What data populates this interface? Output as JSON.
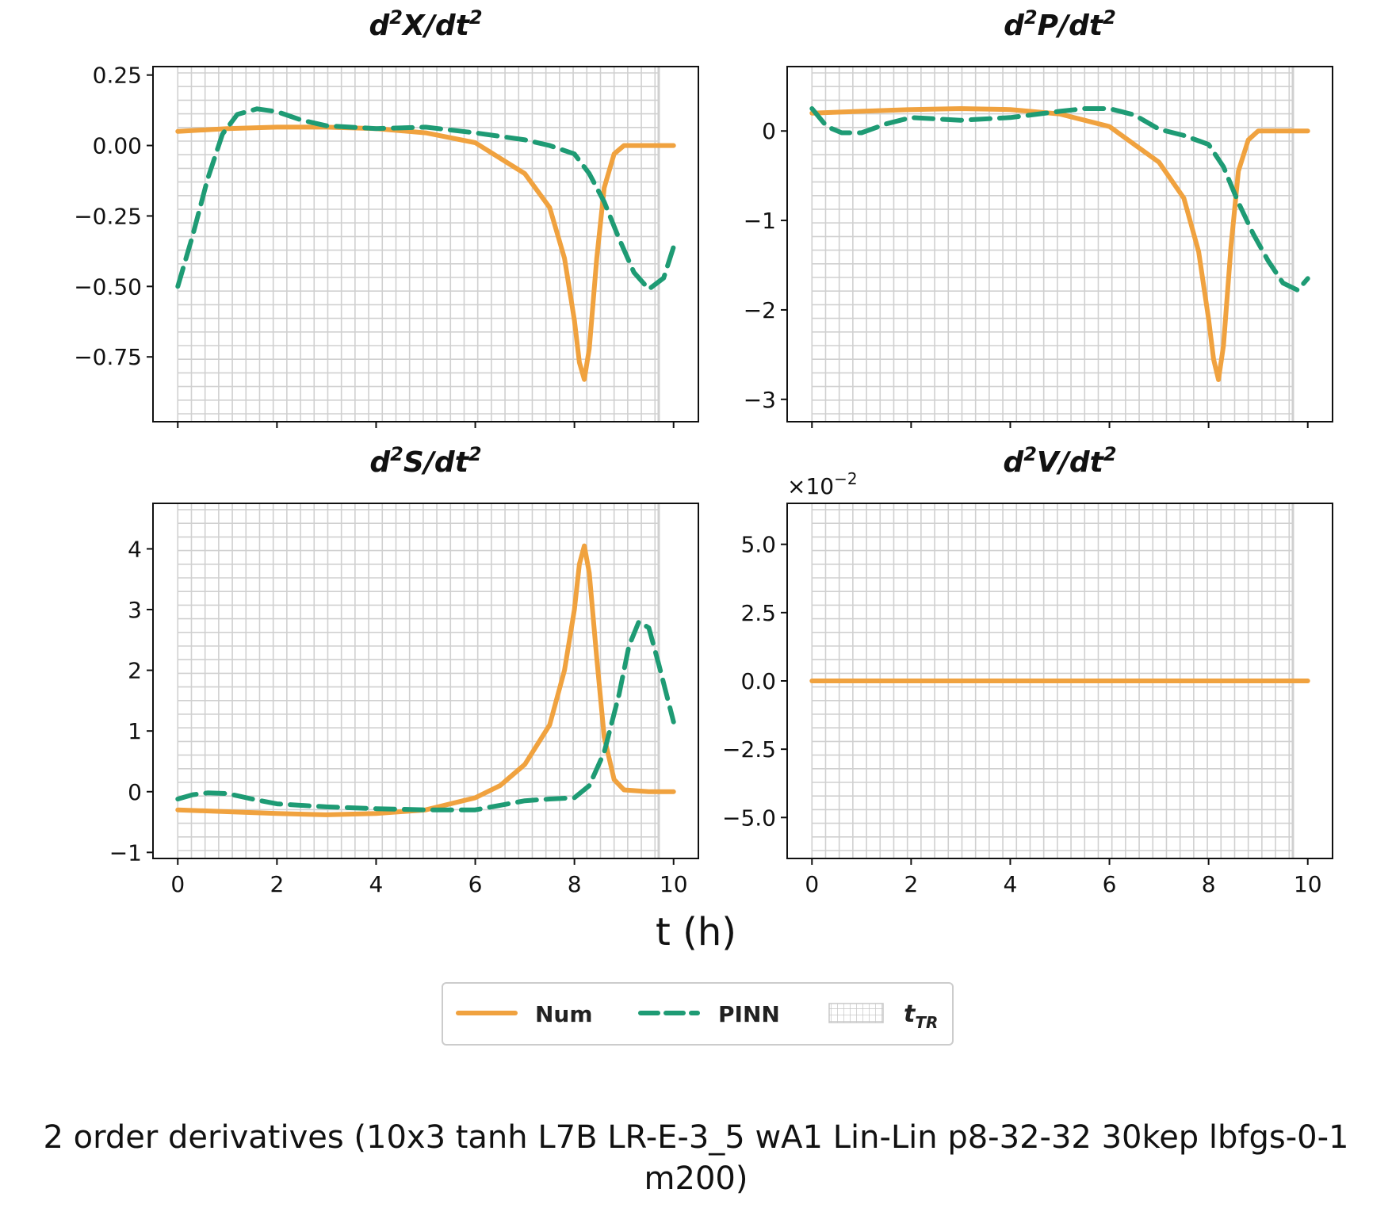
{
  "figure": {
    "xlabel": "t (h)",
    "suptitle_line1": "2 order derivatives (10x3 tanh L7B LR-E-3_5 wA1 Lin-Lin p8-32-32 30kep lbfgs-0-1",
    "suptitle_line2": "m200)"
  },
  "legend": {
    "num": "Num",
    "pinn": "PINN",
    "ttr_base": "t",
    "ttr_sub": "TR"
  },
  "colors": {
    "num": "#f0a23f",
    "pinn": "#1e9b74",
    "grid": "#d0d0d0"
  },
  "chart_data": [
    {
      "type": "line",
      "title_num": "d",
      "title_den": "dt",
      "title_var": "X",
      "title_exp": "2",
      "xlim": [
        -0.5,
        10.5
      ],
      "ylim": [
        -0.98,
        0.28
      ],
      "xticks": [
        0,
        2,
        4,
        6,
        8,
        10
      ],
      "xticklabels": [],
      "yticks": [
        0.25,
        0.0,
        -0.25,
        -0.5,
        -0.75
      ],
      "yticklabels": [
        "0.25",
        "0.00",
        "−0.25",
        "−0.50",
        "−0.75"
      ],
      "exponent_label": "",
      "grid_shaded_region": [
        0,
        9.7
      ],
      "series": [
        {
          "name": "Num",
          "x": [
            0,
            1,
            2,
            3,
            4,
            5,
            6,
            7,
            7.5,
            7.8,
            8.0,
            8.1,
            8.2,
            8.3,
            8.45,
            8.6,
            8.8,
            9.0,
            9.3,
            9.7,
            10
          ],
          "y": [
            0.05,
            0.06,
            0.065,
            0.065,
            0.06,
            0.045,
            0.01,
            -0.1,
            -0.22,
            -0.4,
            -0.62,
            -0.77,
            -0.83,
            -0.72,
            -0.4,
            -0.15,
            -0.03,
            0.0,
            0.0,
            0.0,
            0.0
          ]
        },
        {
          "name": "PINN",
          "x": [
            0,
            0.3,
            0.6,
            0.9,
            1.2,
            1.6,
            2.0,
            2.5,
            3.0,
            4.0,
            5.0,
            6.0,
            7.0,
            7.5,
            8.0,
            8.3,
            8.6,
            8.9,
            9.2,
            9.5,
            9.8,
            10
          ],
          "y": [
            -0.5,
            -0.32,
            -0.12,
            0.04,
            0.11,
            0.13,
            0.12,
            0.09,
            0.07,
            0.06,
            0.065,
            0.045,
            0.02,
            0.0,
            -0.03,
            -0.1,
            -0.2,
            -0.33,
            -0.45,
            -0.51,
            -0.47,
            -0.36
          ]
        }
      ]
    },
    {
      "type": "line",
      "title_num": "d",
      "title_den": "dt",
      "title_var": "P",
      "title_exp": "2",
      "xlim": [
        -0.5,
        10.5
      ],
      "ylim": [
        -3.25,
        0.72
      ],
      "xticks": [
        0,
        2,
        4,
        6,
        8,
        10
      ],
      "xticklabels": [],
      "yticks": [
        0,
        -1,
        -2,
        -3
      ],
      "yticklabels": [
        "0",
        "−1",
        "−2",
        "−3"
      ],
      "exponent_label": "",
      "grid_shaded_region": [
        0,
        9.7
      ],
      "series": [
        {
          "name": "Num",
          "x": [
            0,
            1,
            2,
            3,
            4,
            5,
            6,
            7,
            7.5,
            7.8,
            8.0,
            8.1,
            8.2,
            8.3,
            8.45,
            8.6,
            8.8,
            9.0,
            9.3,
            9.7,
            10
          ],
          "y": [
            0.2,
            0.22,
            0.24,
            0.25,
            0.24,
            0.19,
            0.05,
            -0.35,
            -0.75,
            -1.35,
            -2.1,
            -2.55,
            -2.78,
            -2.4,
            -1.3,
            -0.45,
            -0.1,
            0.0,
            0.0,
            0.0,
            0.0
          ]
        },
        {
          "name": "PINN",
          "x": [
            0,
            0.3,
            0.6,
            1.0,
            1.5,
            2.0,
            3.0,
            4.0,
            5.0,
            5.5,
            6.0,
            6.5,
            7.0,
            7.5,
            8.0,
            8.3,
            8.6,
            8.9,
            9.2,
            9.5,
            9.8,
            10
          ],
          "y": [
            0.25,
            0.05,
            -0.02,
            -0.02,
            0.08,
            0.15,
            0.12,
            0.15,
            0.22,
            0.25,
            0.25,
            0.18,
            0.02,
            -0.05,
            -0.15,
            -0.4,
            -0.8,
            -1.15,
            -1.45,
            -1.7,
            -1.78,
            -1.65
          ]
        }
      ]
    },
    {
      "type": "line",
      "title_num": "d",
      "title_den": "dt",
      "title_var": "S",
      "title_exp": "2",
      "xlim": [
        -0.5,
        10.5
      ],
      "ylim": [
        -1.1,
        4.75
      ],
      "xticks": [
        0,
        2,
        4,
        6,
        8,
        10
      ],
      "xticklabels": [
        "0",
        "2",
        "4",
        "6",
        "8",
        "10"
      ],
      "yticks": [
        4,
        3,
        2,
        1,
        0,
        -1
      ],
      "yticklabels": [
        "4",
        "3",
        "2",
        "1",
        "0",
        "−1"
      ],
      "exponent_label": "",
      "grid_shaded_region": [
        0,
        9.7
      ],
      "series": [
        {
          "name": "Num",
          "x": [
            0,
            1,
            2,
            3,
            4,
            5,
            6,
            6.5,
            7.0,
            7.5,
            7.8,
            8.0,
            8.1,
            8.2,
            8.3,
            8.45,
            8.6,
            8.8,
            9.0,
            9.5,
            10
          ],
          "y": [
            -0.3,
            -0.33,
            -0.36,
            -0.38,
            -0.36,
            -0.3,
            -0.1,
            0.1,
            0.45,
            1.1,
            2.0,
            3.0,
            3.75,
            4.05,
            3.6,
            2.2,
            0.9,
            0.2,
            0.03,
            0.0,
            0.0
          ]
        },
        {
          "name": "PINN",
          "x": [
            0,
            0.3,
            0.6,
            1.0,
            1.5,
            2.0,
            3.0,
            4.0,
            5.0,
            6.0,
            7.0,
            7.5,
            8.0,
            8.3,
            8.6,
            8.9,
            9.1,
            9.3,
            9.5,
            9.7,
            10
          ],
          "y": [
            -0.12,
            -0.05,
            -0.02,
            -0.03,
            -0.12,
            -0.2,
            -0.25,
            -0.28,
            -0.3,
            -0.3,
            -0.15,
            -0.12,
            -0.1,
            0.1,
            0.65,
            1.6,
            2.4,
            2.8,
            2.7,
            2.1,
            1.15
          ]
        }
      ]
    },
    {
      "type": "line",
      "title_num": "d",
      "title_den": "dt",
      "title_var": "V",
      "title_exp": "2",
      "xlim": [
        -0.5,
        10.5
      ],
      "ylim": [
        -6.5,
        6.5
      ],
      "xticks": [
        0,
        2,
        4,
        6,
        8,
        10
      ],
      "xticklabels": [
        "0",
        "2",
        "4",
        "6",
        "8",
        "10"
      ],
      "yticks": [
        5.0,
        2.5,
        0.0,
        -2.5,
        -5.0
      ],
      "yticklabels": [
        "5.0",
        "2.5",
        "0.0",
        "−2.5",
        "−5.0"
      ],
      "exponent_label": "×10",
      "exponent_power": "−2",
      "grid_shaded_region": [
        0,
        9.7
      ],
      "series": [
        {
          "name": "Num",
          "x": [
            0,
            10
          ],
          "y": [
            0,
            0
          ]
        }
      ]
    }
  ]
}
